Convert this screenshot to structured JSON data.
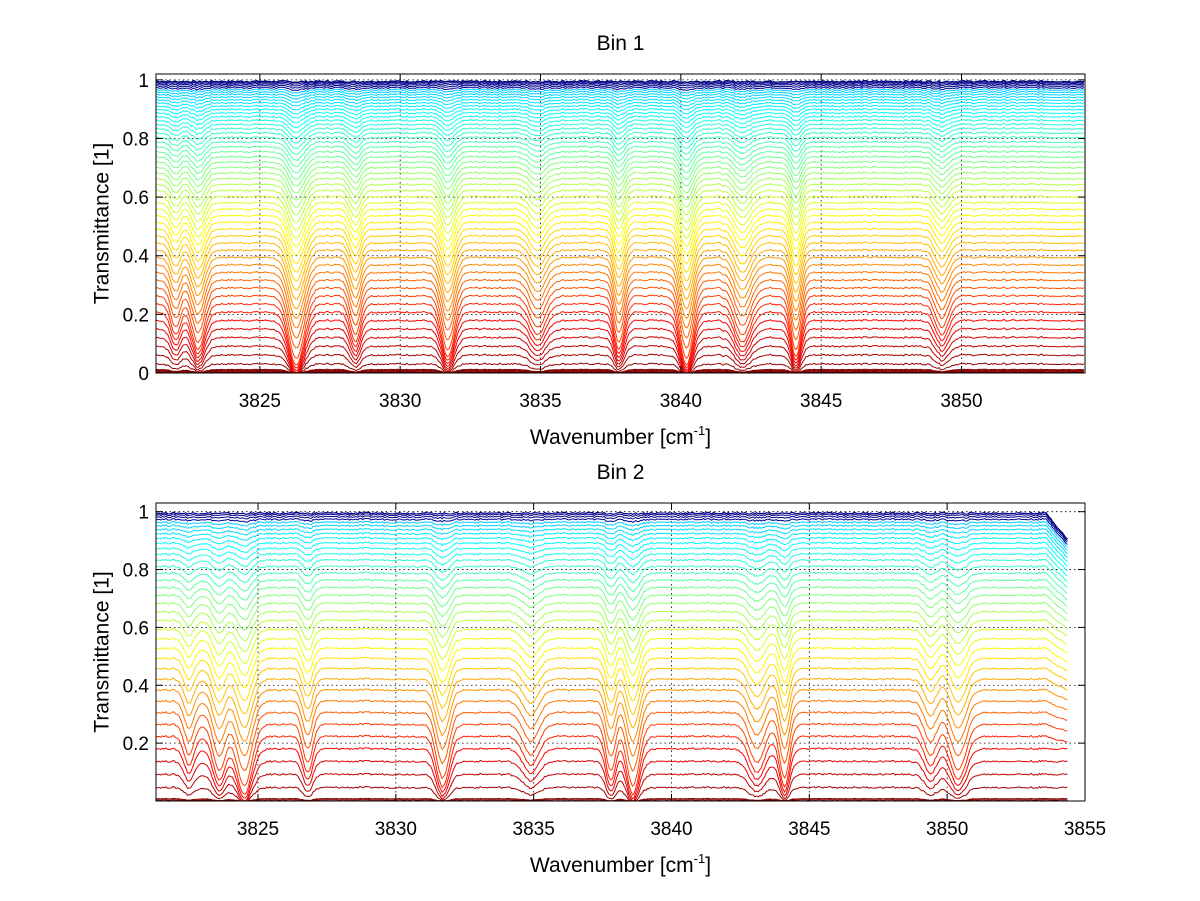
{
  "chart_data": [
    {
      "type": "line",
      "title": "Bin 1",
      "xlabel": "Wavenumber [cm",
      "xlabel_sup": "-1",
      "xlabel_end": "]",
      "ylabel": "Transmittance [1]",
      "xlim": [
        3821.3,
        3854.4
      ],
      "ylim": [
        0,
        1.02
      ],
      "xticks": [
        3825,
        3830,
        3835,
        3840,
        3845,
        3850
      ],
      "yticks": [
        0,
        0.2,
        0.4,
        0.6,
        0.8,
        1
      ],
      "ytick_labels": [
        "0",
        "0.2",
        "0.4",
        "0.6",
        "0.8",
        "1"
      ],
      "grid": true,
      "series_count": 60,
      "colormap": "jet (dark red at low transmittance to blue near 1)",
      "absorption_lines_cm-1": [
        3822.0,
        3822.8,
        3826.3,
        3828.4,
        3831.7,
        3834.9,
        3837.8,
        3840.2,
        3842.2,
        3844.1,
        3849.3
      ]
    },
    {
      "type": "line",
      "title": "Bin 2",
      "xlabel": "Wavenumber [cm",
      "xlabel_sup": "-1",
      "xlabel_end": "]",
      "ylabel": "Transmittance [1]",
      "xlim": [
        3821.3,
        3855
      ],
      "ylim": [
        0,
        1.03
      ],
      "xticks": [
        3825,
        3830,
        3835,
        3840,
        3845,
        3850,
        3855
      ],
      "yticks": [
        0.2,
        0.4,
        0.6,
        0.8,
        1
      ],
      "ytick_labels": [
        "0.2",
        "0.4",
        "0.6",
        "0.8",
        "1"
      ],
      "grid": true,
      "series_count": 40,
      "colormap": "jet (dark red at low transmittance to blue near 1)",
      "absorption_lines_cm-1": [
        3822.5,
        3823.6,
        3824.5,
        3826.8,
        3831.7,
        3834.9,
        3837.8,
        3838.6,
        3843.1,
        3844.1,
        3849.4,
        3850.4
      ]
    }
  ]
}
